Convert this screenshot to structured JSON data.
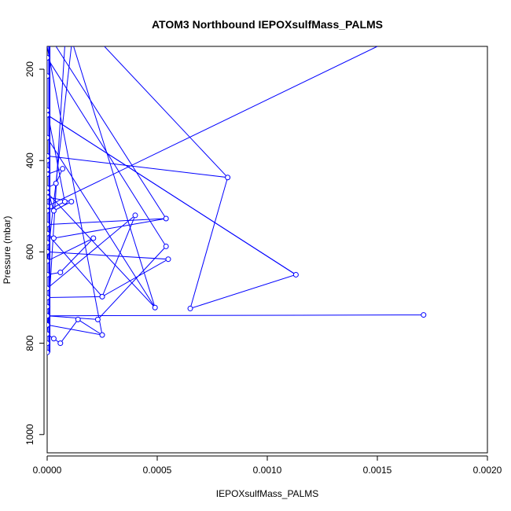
{
  "chart_data": {
    "type": "line",
    "title": "ATOM3 Northbound IEPOXsulfMass_PALMS",
    "xlabel": "IEPOXsulfMass_PALMS",
    "ylabel": "Pressure (mbar)",
    "xlim": [
      0,
      0.002
    ],
    "ylim": [
      1040,
      150
    ],
    "y_reversed": true,
    "x_ticks": [
      0,
      0.0005,
      0.001,
      0.0015,
      0.002
    ],
    "x_tick_labels": [
      "0.0000",
      "0.0005",
      "0.0010",
      "0.0015",
      "0.0020"
    ],
    "y_ticks": [
      200,
      400,
      600,
      800,
      1000
    ],
    "y_tick_labels": [
      "200",
      "400",
      "600",
      "800",
      "1000"
    ],
    "grid": false,
    "legend": "none",
    "color": "#0000ff",
    "marker": "open-circle",
    "series": [
      {
        "points": [
          [
            0.0,
            820
          ],
          [
            0.0,
            800
          ],
          [
            0.0,
            780
          ],
          [
            3e-05,
            790
          ],
          [
            6e-05,
            800
          ],
          [
            0.00014,
            748
          ],
          [
            0.00025,
            782
          ],
          [
            0.0,
            760
          ],
          [
            0.0,
            740
          ],
          [
            0.0,
            720
          ],
          [
            0.0,
            700
          ],
          [
            0.00025,
            698
          ],
          [
            0.0004,
            520
          ],
          [
            0.0,
            680
          ],
          [
            0.0,
            650
          ],
          [
            6e-05,
            645
          ],
          [
            0.00021,
            570
          ],
          [
            0.0,
            620
          ],
          [
            0.0,
            600
          ],
          [
            0.0,
            580
          ],
          [
            0.0,
            560
          ],
          [
            3e-05,
            570
          ],
          [
            0.00054,
            527
          ],
          [
            0.0,
            540
          ],
          [
            0.0,
            500
          ],
          [
            0.0,
            480
          ],
          [
            0.00011,
            490
          ],
          [
            3e-05,
            510
          ],
          [
            0.0,
            460
          ],
          [
            4e-05,
            450
          ],
          [
            7e-05,
            418
          ],
          [
            0.0,
            430
          ],
          [
            0.0,
            420
          ],
          [
            0.0,
            400
          ],
          [
            0.0,
            390
          ],
          [
            0.00082,
            437
          ],
          [
            0.00065,
            724
          ],
          [
            0.00113,
            650
          ],
          [
            0.0,
            300
          ],
          [
            0.0,
            290
          ],
          [
            8e-05,
            490
          ],
          [
            0.0,
            510
          ],
          [
            0.0,
            470
          ],
          [
            0.00049,
            722
          ],
          [
            0.0,
            350
          ],
          [
            0.0,
            215
          ],
          [
            0.0,
            175
          ],
          [
            0.00054,
            588
          ],
          [
            0.00023,
            748
          ],
          [
            0.0,
            740
          ],
          [
            0.00171,
            738
          ],
          [
            0.0,
            740
          ],
          [
            0.0,
            600
          ],
          [
            0.00055,
            616
          ],
          [
            0.00025,
            698
          ],
          [
            0.0,
            560
          ]
        ]
      }
    ],
    "extra_segments": [
      [
        [
          0.0,
          500
        ],
        [
          0.0015,
          150
        ]
      ],
      [
        [
          0.0,
          300
        ],
        [
          0.00113,
          650
        ]
      ],
      [
        [
          0.00026,
          150
        ],
        [
          0.00082,
          437
        ]
      ],
      [
        [
          0.00012,
          150
        ],
        [
          0.00049,
          722
        ]
      ],
      [
        [
          4e-05,
          150
        ],
        [
          0.00054,
          527
        ]
      ],
      [
        [
          0.00011,
          150
        ],
        [
          0.0,
          620
        ]
      ],
      [
        [
          8e-05,
          150
        ],
        [
          0.0,
          780
        ]
      ],
      [
        [
          0.0,
          150
        ],
        [
          0.00025,
          782
        ]
      ]
    ]
  }
}
